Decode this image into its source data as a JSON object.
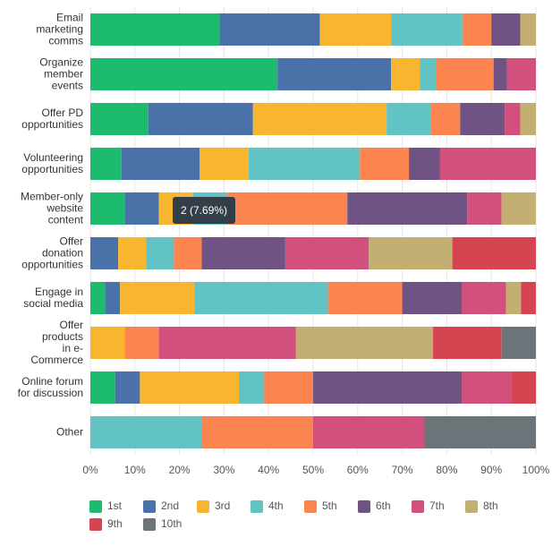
{
  "chart_data": {
    "type": "stacked_bar_horizontal",
    "categories": [
      "Email\nmarketing\ncomms",
      "Organize\nmember\nevents",
      "Offer PD\nopportunities",
      "Volunteering\nopportunities",
      "Member-only\nwebsite\ncontent",
      "Offer\ndonation\nopportunities",
      "Engage in\nsocial media",
      "Offer\nproducts\nin e-\nCommerce",
      "Online forum\nfor discussion",
      "Other"
    ],
    "series": [
      {
        "name": "1st",
        "color": "#1dbb6d",
        "values": [
          29,
          42,
          13,
          7,
          7.69,
          0,
          3.33,
          0,
          5.56,
          0
        ]
      },
      {
        "name": "2nd",
        "color": "#4a72a8",
        "values": [
          22.5,
          25.5,
          23.5,
          17.5,
          7.69,
          6.25,
          3.33,
          0,
          5.56,
          0
        ]
      },
      {
        "name": "3rd",
        "color": "#f8b630",
        "values": [
          16,
          6.5,
          30,
          11,
          7.69,
          6.25,
          16.67,
          7.69,
          22.22,
          0
        ]
      },
      {
        "name": "4th",
        "color": "#62c3c5",
        "values": [
          16,
          3.5,
          10,
          25,
          7.69,
          6.25,
          30,
          0,
          5.56,
          25
        ]
      },
      {
        "name": "5th",
        "color": "#fc844e",
        "values": [
          6.5,
          13,
          6.5,
          11,
          26.92,
          6.25,
          16.67,
          7.69,
          11.11,
          25
        ]
      },
      {
        "name": "6th",
        "color": "#6e5384",
        "values": [
          6.5,
          3,
          10,
          7,
          26.92,
          18.75,
          13.33,
          0,
          33.33,
          0
        ]
      },
      {
        "name": "7th",
        "color": "#d2507d",
        "values": [
          0,
          6.5,
          3.5,
          21.5,
          7.69,
          18.75,
          10,
          30.77,
          11.11,
          25
        ]
      },
      {
        "name": "8th",
        "color": "#c4af73",
        "values": [
          3.5,
          0,
          3.5,
          0,
          7.69,
          18.75,
          3.33,
          30.77,
          0,
          0
        ]
      },
      {
        "name": "9th",
        "color": "#d64452",
        "values": [
          0,
          0,
          0,
          0,
          0,
          18.75,
          3.33,
          15.38,
          5.56,
          0
        ]
      },
      {
        "name": "10th",
        "color": "#6b7479",
        "values": [
          0,
          0,
          0,
          0,
          0,
          0,
          0,
          7.69,
          0,
          25
        ]
      }
    ],
    "xlim": [
      0,
      100
    ],
    "xticks": [
      {
        "value": 0,
        "label": "0%"
      },
      {
        "value": 10,
        "label": "10%"
      },
      {
        "value": 20,
        "label": "20%"
      },
      {
        "value": 30,
        "label": "30%"
      },
      {
        "value": 40,
        "label": "40%"
      },
      {
        "value": 50,
        "label": "50%"
      },
      {
        "value": 60,
        "label": "60%"
      },
      {
        "value": 70,
        "label": "70%"
      },
      {
        "value": 80,
        "label": "80%"
      },
      {
        "value": 90,
        "label": "90%"
      },
      {
        "value": 100,
        "label": "100%"
      }
    ],
    "grid": true,
    "legend": "bottom",
    "tooltip": "2 (7.69%)"
  }
}
